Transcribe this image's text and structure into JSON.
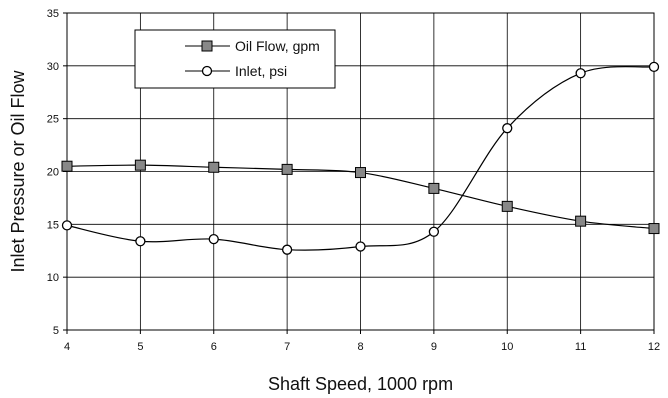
{
  "chart_data": {
    "type": "line",
    "title": "",
    "xlabel": "Shaft Speed, 1000 rpm",
    "ylabel": "Inlet Pressure or Oil Flow",
    "xlim": [
      4,
      12
    ],
    "ylim": [
      5,
      35
    ],
    "x_ticks": [
      "4",
      "5",
      "6",
      "7",
      "8",
      "9",
      "10",
      "11",
      "12"
    ],
    "y_ticks": [
      "5",
      "10",
      "15",
      "20",
      "25",
      "30",
      "35"
    ],
    "grid": true,
    "legend_position": "top-left",
    "x": [
      4,
      5,
      6,
      7,
      8,
      9,
      10,
      11,
      12
    ],
    "series": [
      {
        "name": "Oil Flow, gpm",
        "marker": "filled-square",
        "values": [
          20.5,
          20.6,
          20.4,
          20.2,
          19.9,
          18.4,
          16.7,
          15.3,
          14.6
        ]
      },
      {
        "name": "Inlet, psi",
        "marker": "open-circle",
        "values": [
          14.9,
          13.4,
          13.6,
          12.6,
          12.9,
          14.3,
          24.1,
          29.3,
          29.9
        ]
      }
    ]
  }
}
